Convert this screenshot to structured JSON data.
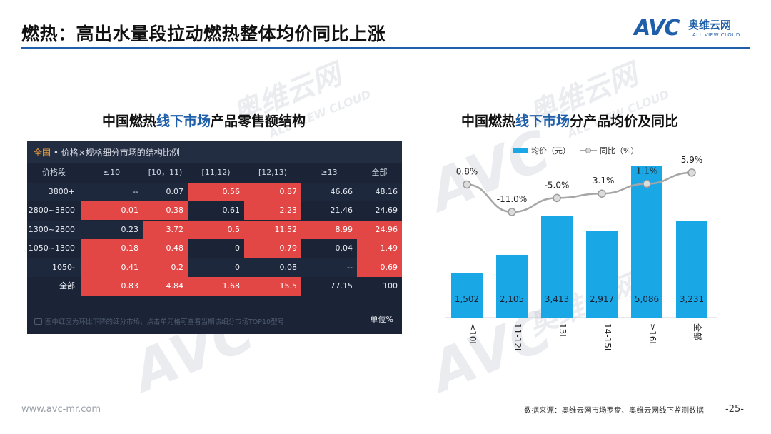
{
  "page": {
    "title": "燃热：高出水量段拉动燃热整体均价同比上涨",
    "logo_text": "AVC",
    "logo_cn": "奥维云网",
    "logo_en": "ALL VIEW CLOUD",
    "watermark_cn": "奥维云网",
    "watermark_en": "ALL VIEW CLOUD",
    "watermark_logo": "AVC",
    "footer_url": "www.avc-mr.com",
    "footer_source": "数据来源：奥维云网市场罗盘、奥维云网线下监测数据",
    "page_number": "-25-"
  },
  "left": {
    "subtitle_a": "中国燃热",
    "subtitle_b": "线下市场",
    "subtitle_c": "产品零售额结构",
    "caption_a": "全国",
    "caption_b": " • 价格×规格细分市场的结构比例",
    "note": "图中红区为环比下降的细分市场，点击单元格可查看当期该细分市场TOP10型号",
    "unit": "单位%",
    "headers": [
      "价格段",
      "≤10",
      "[10，11)",
      "[11,12)",
      "[12,13)",
      "≥13",
      "全部"
    ],
    "rows": [
      {
        "label": "3800+",
        "cells": [
          "--",
          "0.07",
          "0.56",
          "0.87",
          "46.66",
          "48.16"
        ],
        "red": [
          false,
          false,
          true,
          true,
          false,
          false
        ]
      },
      {
        "label": "2800~3800",
        "cells": [
          "0.01",
          "0.38",
          "0.61",
          "2.23",
          "21.46",
          "24.69"
        ],
        "red": [
          true,
          true,
          false,
          true,
          false,
          false
        ]
      },
      {
        "label": "1300~2800",
        "cells": [
          "0.23",
          "3.72",
          "0.5",
          "11.52",
          "8.99",
          "24.96"
        ],
        "red": [
          false,
          true,
          true,
          true,
          true,
          true
        ]
      },
      {
        "label": "1050~1300",
        "cells": [
          "0.18",
          "0.48",
          "0",
          "0.79",
          "0.04",
          "1.49"
        ],
        "red": [
          true,
          true,
          false,
          true,
          false,
          true
        ]
      },
      {
        "label": "1050-",
        "cells": [
          "0.41",
          "0.2",
          "0",
          "0.08",
          "--",
          "0.69"
        ],
        "red": [
          true,
          true,
          false,
          false,
          false,
          true
        ]
      },
      {
        "label": "全部",
        "cells": [
          "0.83",
          "4.84",
          "1.68",
          "15.5",
          "77.15",
          "100"
        ],
        "red": [
          true,
          true,
          true,
          true,
          false,
          false
        ]
      }
    ]
  },
  "right": {
    "subtitle_a": "中国燃热",
    "subtitle_b": "线下市场",
    "subtitle_c": "分产品均价及同比"
  },
  "colors": {
    "bar": "#1aa7e6",
    "line": "#a6a6a6",
    "accent": "#1f5ea8",
    "red_cell": "#e24645"
  },
  "chart_data": {
    "type": "bar",
    "categories": [
      "≤10L",
      "11-12L",
      "13L",
      "14-15L",
      "≥16L",
      "全部"
    ],
    "series": [
      {
        "name": "均价（元）",
        "type": "bar",
        "values": [
          1502,
          2105,
          3413,
          2917,
          5086,
          3231
        ],
        "labels": [
          "1,502",
          "2,105",
          "3,413",
          "2,917",
          "5,086",
          "3,231"
        ]
      },
      {
        "name": "同比（%）",
        "type": "line",
        "values": [
          0.8,
          -11.0,
          -5.0,
          -3.1,
          1.1,
          5.9
        ],
        "labels": [
          "0.8%",
          "-11.0%",
          "-5.0%",
          "-3.1%",
          "1.1%",
          "5.9%"
        ]
      }
    ],
    "bar_range": [
      0,
      5500
    ],
    "line_range": [
      -15,
      8
    ],
    "legend": "top"
  }
}
